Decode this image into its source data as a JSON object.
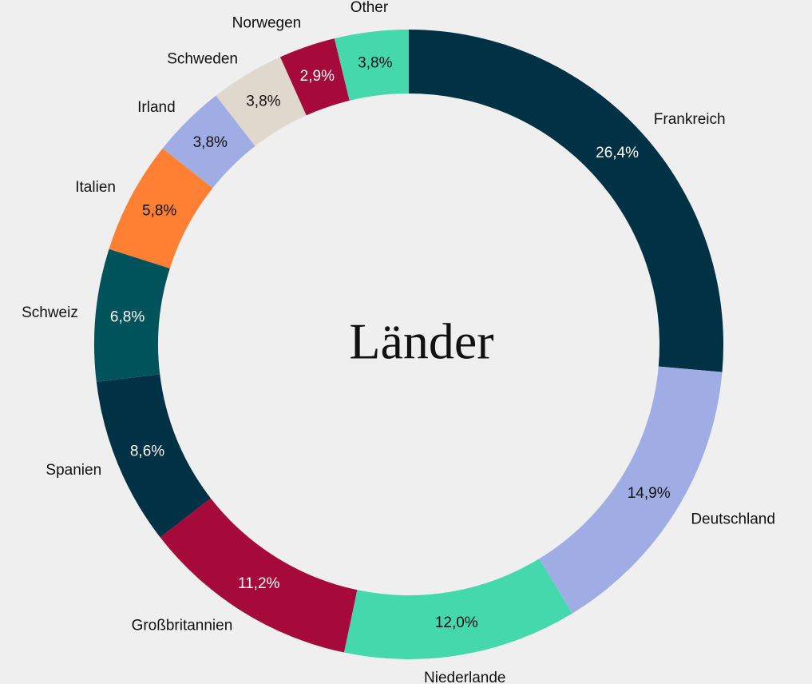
{
  "chart_data": {
    "type": "donut",
    "title": "Länder",
    "categories": [
      "Frankreich",
      "Deutschland",
      "Niederlande",
      "Großbritannien",
      "Spanien",
      "Schweiz",
      "Italien",
      "Irland",
      "Schweden",
      "Norwegen",
      "Other"
    ],
    "values": [
      26.4,
      14.9,
      12.0,
      11.2,
      8.6,
      6.8,
      5.8,
      3.8,
      3.8,
      2.9,
      3.8
    ],
    "value_labels": [
      "26,4%",
      "14,9%",
      "12,0%",
      "11,2%",
      "8,6%",
      "6,8%",
      "5,8%",
      "3,8%",
      "3,8%",
      "2,9%",
      "3,8%"
    ],
    "colors": [
      "#003144",
      "#a0ade5",
      "#46d8ad",
      "#a50a3a",
      "#003144",
      "#00535a",
      "#ff8033",
      "#a0ade5",
      "#e0d8cd",
      "#a50a3a",
      "#46d8ad"
    ]
  }
}
